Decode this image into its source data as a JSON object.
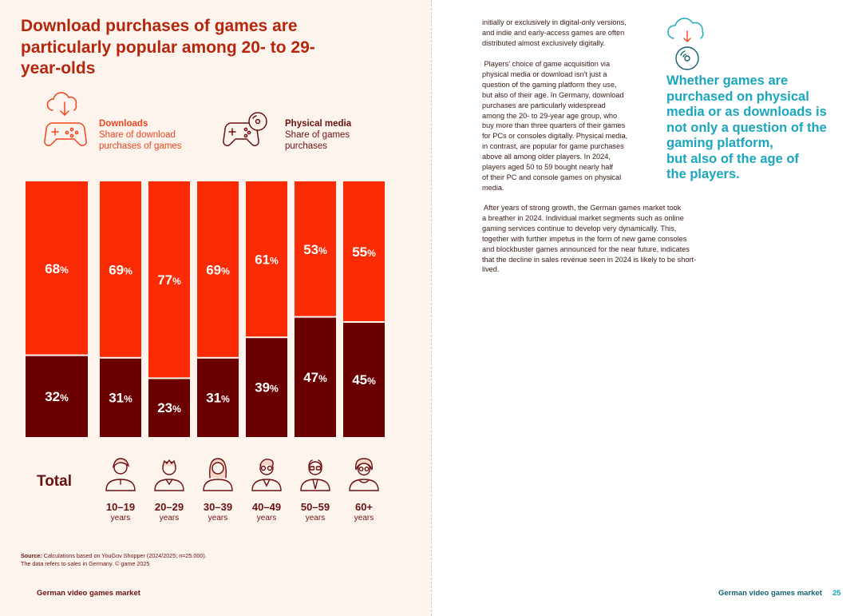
{
  "left_page": {
    "title": "Download purchases of games are particularly popular among 20- to 29-year-olds",
    "legend": {
      "downloads": {
        "title": "Downloads",
        "desc_line1": "Share of download",
        "desc_line2": "purchases of games",
        "icon": "gamepad-download-icon"
      },
      "physical": {
        "title": "Physical media",
        "desc_line1": "Share of games",
        "desc_line2": "purchases",
        "icon": "gamepad-disc-icon"
      }
    },
    "total_label": "Total",
    "age_groups": [
      {
        "range": "10–19",
        "unit": "years",
        "icon": "person-teen-icon"
      },
      {
        "range": "20–29",
        "unit": "years",
        "icon": "person-young-man-icon"
      },
      {
        "range": "30–39",
        "unit": "years",
        "icon": "person-woman-icon"
      },
      {
        "range": "40–49",
        "unit": "years",
        "icon": "person-man-glasses-icon"
      },
      {
        "range": "50–59",
        "unit": "years",
        "icon": "person-older-man-icon"
      },
      {
        "range": "60+",
        "unit": "years",
        "icon": "person-older-woman-icon"
      }
    ],
    "source_label": "Source:",
    "source_text": " Calculations based on YouGov Shopper (2024/2025; n=25.000).",
    "source_note": "The data refers to sales in Germany. © game 2025",
    "footer": "German video games market"
  },
  "right_page": {
    "paragraph1_lines": [
      "initially or exclusively in digital-only versions,",
      "and indie and early-access games are often",
      "distributed almost exclusively digitally."
    ],
    "paragraph2_lines": [
      " Players' choice of game acquisition via",
      "physical media or download isn't just a",
      "question of the gaming platform they use,",
      "but also of their age. In Germany, download",
      "purchases are particularly widespread",
      "among the 20- to 29-year age group, who",
      "buy more than three quarters of their games",
      "for PCs or consoles digitally. Physical media,",
      "in contrast, are popular for game purchases",
      "above all among older players. In 2024,",
      "players aged 50 to 59 bought nearly half",
      "of their PC and console games on physical",
      "media."
    ],
    "paragraph3_lines": [
      " After years of strong growth, the German games market took",
      "a breather in 2024. Individual market segments such as online",
      "gaming services continue to develop very dynamically. This,",
      "together with further impetus in the form of new game consoles",
      "and blockbuster games announced for the near future, indicates",
      "that the decline in sales revenue seen in 2024 is likely to be short-",
      "lived."
    ],
    "pull_quote": "Whether games are\npurchased on physical\nmedia or as downloads is\nnot only a question of the\ngaming platform,\nbut also of the age of\nthe players.",
    "quote_icon": "cloud-download-disc-icon",
    "footer": "German video games market",
    "page_number": "25"
  },
  "colors": {
    "downloads": "#fb2b06",
    "physical": "#6a0000",
    "title": "#b6260c",
    "quote": "#1aa6bd",
    "page_bg_left": "#fdf4ee"
  },
  "chart_data": {
    "type": "bar",
    "stacked": true,
    "normalized": true,
    "categories": [
      "Total",
      "10–19 years",
      "20–29 years",
      "30–39 years",
      "40–49 years",
      "50–59 years",
      "60+ years"
    ],
    "series": [
      {
        "name": "Downloads",
        "values": [
          68,
          69,
          77,
          69,
          61,
          53,
          55
        ]
      },
      {
        "name": "Physical media",
        "values": [
          32,
          31,
          23,
          31,
          39,
          47,
          45
        ]
      }
    ],
    "value_suffix": "%",
    "ylim": [
      0,
      100
    ],
    "grid": false
  }
}
